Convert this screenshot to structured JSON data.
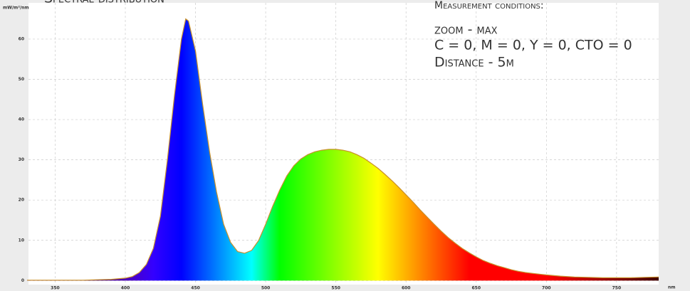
{
  "chart_data": {
    "type": "area",
    "title": "Spectral distribution",
    "y_label": "mW/m²/nm",
    "x_label": "nm",
    "annotations": [
      "Measurement conditions:",
      "zoom - max",
      "C = 0, M = 0, Y = 0, CTO = 0",
      "Distance - 5m"
    ],
    "x": [
      330,
      340,
      350,
      360,
      370,
      380,
      390,
      400,
      405,
      410,
      415,
      420,
      425,
      430,
      435,
      440,
      443,
      445,
      450,
      455,
      460,
      465,
      470,
      475,
      480,
      485,
      490,
      495,
      500,
      505,
      510,
      515,
      520,
      525,
      530,
      535,
      540,
      545,
      550,
      555,
      560,
      565,
      570,
      575,
      580,
      585,
      590,
      595,
      600,
      605,
      610,
      615,
      620,
      625,
      630,
      635,
      640,
      645,
      650,
      655,
      660,
      665,
      670,
      675,
      680,
      685,
      690,
      695,
      700,
      710,
      720,
      730,
      740,
      750,
      760,
      770,
      780
    ],
    "values": [
      0.1,
      0.1,
      0.1,
      0.1,
      0.1,
      0.2,
      0.3,
      0.6,
      1,
      2,
      4,
      8,
      16,
      30,
      46,
      60,
      65,
      64.5,
      57,
      44,
      32,
      22,
      14,
      9.5,
      7.2,
      6.8,
      7.5,
      10,
      14,
      18.5,
      22.5,
      26,
      28.5,
      30.2,
      31.3,
      32,
      32.4,
      32.6,
      32.6,
      32.4,
      32,
      31.3,
      30.4,
      29.2,
      27.9,
      26.4,
      24.8,
      23.1,
      21.3,
      19.5,
      17.6,
      15.8,
      14,
      12.3,
      10.7,
      9.3,
      8,
      6.9,
      5.9,
      5,
      4.3,
      3.7,
      3.2,
      2.7,
      2.3,
      2,
      1.8,
      1.6,
      1.4,
      1.1,
      0.9,
      0.8,
      0.7,
      0.7,
      0.7,
      0.8,
      0.9
    ],
    "xlim": [
      331,
      780
    ],
    "ylim": [
      -1,
      69
    ],
    "xticks": [
      350,
      400,
      450,
      500,
      550,
      600,
      650,
      700,
      750
    ],
    "yticks": [
      0,
      10,
      20,
      30,
      40,
      50,
      60
    ],
    "grid": true,
    "color": "#c8902a"
  }
}
